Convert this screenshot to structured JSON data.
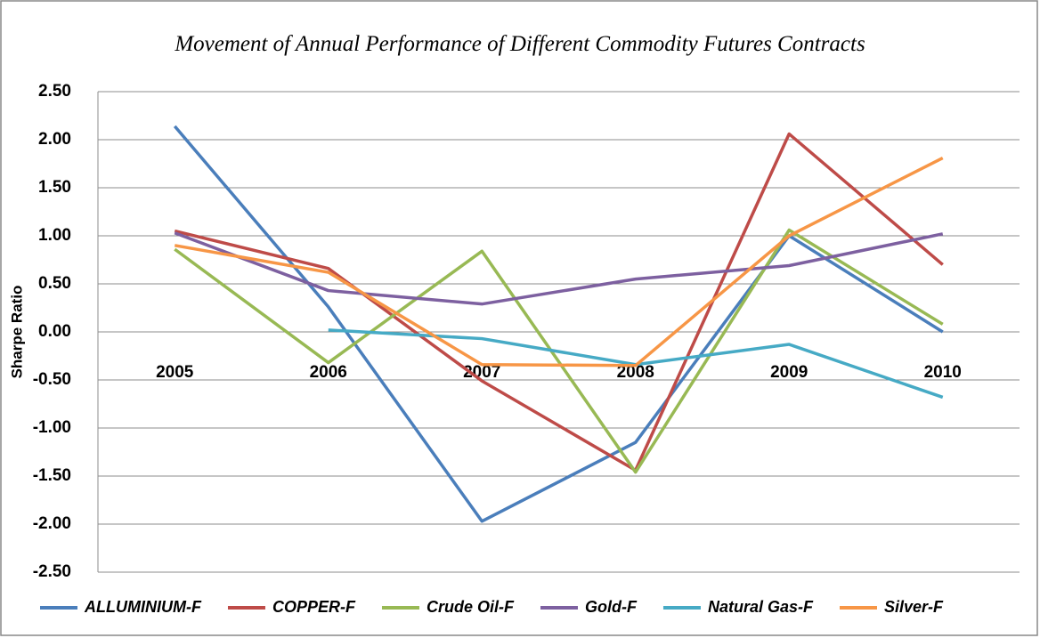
{
  "chart_data": {
    "type": "line",
    "title": "Movement of Annual Performance of Different Commodity  Futures Contracts",
    "y_label": "Sharpe Ratio",
    "categories": [
      "2005",
      "2006",
      "2007",
      "2008",
      "2009",
      "2010"
    ],
    "series": [
      {
        "name": "ALLUMINIUM-F",
        "color": "#4a7ebb",
        "values": [
          2.14,
          0.26,
          -1.97,
          -1.15,
          1.0,
          0.0
        ]
      },
      {
        "name": "COPPER-F",
        "color": "#be4b48",
        "values": [
          1.05,
          0.66,
          -0.51,
          -1.44,
          2.06,
          0.7
        ]
      },
      {
        "name": "Crude Oil-F",
        "color": "#98b954",
        "values": [
          0.86,
          -0.32,
          0.84,
          -1.46,
          1.06,
          0.08
        ]
      },
      {
        "name": "Gold-F",
        "color": "#7d60a0",
        "values": [
          1.03,
          0.43,
          0.29,
          0.55,
          0.69,
          1.02
        ]
      },
      {
        "name": "Natural Gas-F",
        "color": "#46aac5",
        "values": [
          null,
          0.02,
          -0.07,
          -0.34,
          -0.13,
          -0.68
        ]
      },
      {
        "name": "Silver-F",
        "color": "#f79646",
        "values": [
          0.9,
          0.62,
          -0.34,
          -0.35,
          1.0,
          1.81
        ]
      }
    ],
    "ylim": [
      -2.5,
      2.5
    ],
    "yticks": [
      {
        "value": -2.5,
        "label": "-2.50"
      },
      {
        "value": -2,
        "label": "-2.00"
      },
      {
        "value": -1.5,
        "label": "-1.50"
      },
      {
        "value": -1,
        "label": "-1.00"
      },
      {
        "value": -0.5,
        "label": "-0.50"
      },
      {
        "value": 0,
        "label": "0.00"
      },
      {
        "value": 0.5,
        "label": "0.50"
      },
      {
        "value": 1,
        "label": "1.00"
      },
      {
        "value": 1.5,
        "label": "1.50"
      },
      {
        "value": 2,
        "label": "2.00"
      },
      {
        "value": 2.5,
        "label": "2.50"
      }
    ],
    "grid": true,
    "legend": "bottom"
  }
}
